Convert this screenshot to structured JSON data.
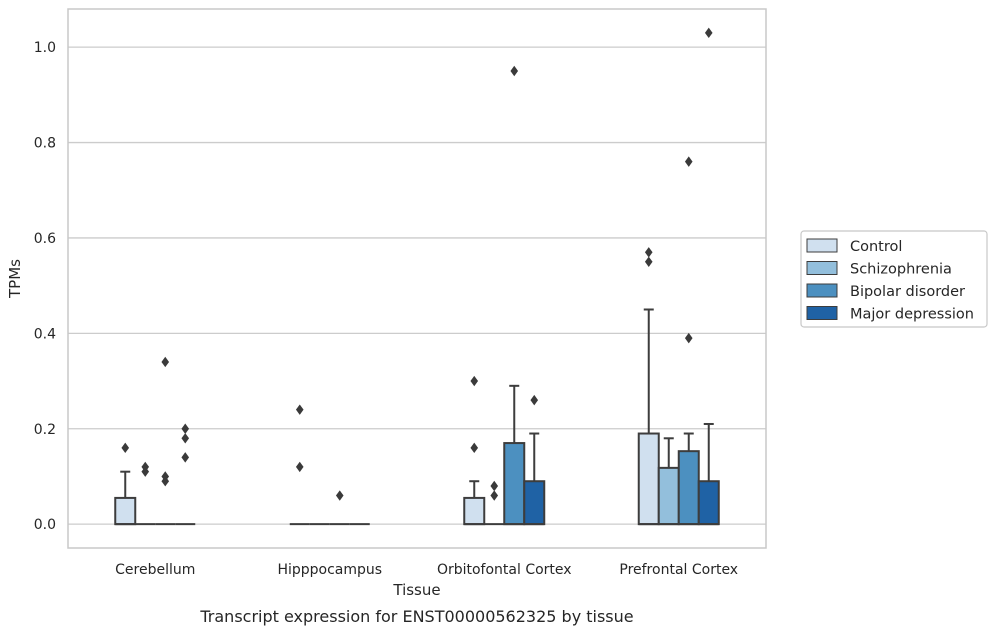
{
  "colors": {
    "Control": "#d0e0ef",
    "Schizophrenia": "#93bfdc",
    "Bipolar disorder": "#4c90c0",
    "Major depression": "#1f62a5",
    "edge": "#3d3d3d",
    "grid": "#cccccc",
    "frame": "#c8c8c8",
    "outlier": "#3a3a3a"
  },
  "caption": "Transcript expression for ENST00000562325 by tissue",
  "chart_data": {
    "type": "bar",
    "subtype": "boxplot",
    "xlabel": "Tissue",
    "ylabel": "TPMs",
    "ylim": [
      -0.05,
      1.08
    ],
    "yticks": [
      0.0,
      0.2,
      0.4,
      0.6,
      0.8,
      1.0
    ],
    "ytick_labels": [
      "0.0",
      "0.2",
      "0.4",
      "0.6",
      "0.8",
      "1.0"
    ],
    "grid": true,
    "legend_position": "right",
    "categories": [
      "Cerebellum",
      "Hipppocampus",
      "Orbitofontal Cortex",
      "Prefrontal Cortex"
    ],
    "series": [
      {
        "name": "Control",
        "boxes": [
          {
            "q1": 0,
            "median": 0,
            "q3": 0.055,
            "whisker_high": 0.11,
            "outliers": [
              0.16
            ]
          },
          {
            "q1": 0,
            "median": 0,
            "q3": 0,
            "whisker_high": 0,
            "outliers": [
              0.12,
              0.24
            ]
          },
          {
            "q1": 0,
            "median": 0,
            "q3": 0.055,
            "whisker_high": 0.09,
            "outliers": [
              0.16,
              0.3
            ]
          },
          {
            "q1": 0,
            "median": 0,
            "q3": 0.19,
            "whisker_high": 0.45,
            "outliers": [
              0.55,
              0.57
            ]
          }
        ]
      },
      {
        "name": "Schizophrenia",
        "boxes": [
          {
            "q1": 0,
            "median": 0,
            "q3": 0,
            "whisker_high": 0,
            "outliers": [
              0.11,
              0.12
            ]
          },
          {
            "q1": 0,
            "median": 0,
            "q3": 0,
            "whisker_high": 0,
            "outliers": []
          },
          {
            "q1": 0,
            "median": 0,
            "q3": 0,
            "whisker_high": 0,
            "outliers": [
              0.06,
              0.08
            ]
          },
          {
            "q1": 0,
            "median": 0,
            "q3": 0.118,
            "whisker_high": 0.18,
            "outliers": []
          }
        ]
      },
      {
        "name": "Bipolar disorder",
        "boxes": [
          {
            "q1": 0,
            "median": 0,
            "q3": 0,
            "whisker_high": 0,
            "outliers": [
              0.09,
              0.1,
              0.34
            ]
          },
          {
            "q1": 0,
            "median": 0,
            "q3": 0,
            "whisker_high": 0,
            "outliers": [
              0.06
            ]
          },
          {
            "q1": 0,
            "median": 0,
            "q3": 0.17,
            "whisker_high": 0.29,
            "outliers": [
              0.95
            ]
          },
          {
            "q1": 0,
            "median": 0,
            "q3": 0.153,
            "whisker_high": 0.19,
            "outliers": [
              0.39,
              0.76
            ]
          }
        ]
      },
      {
        "name": "Major depression",
        "boxes": [
          {
            "q1": 0,
            "median": 0,
            "q3": 0,
            "whisker_high": 0,
            "outliers": [
              0.14,
              0.18,
              0.2
            ]
          },
          {
            "q1": 0,
            "median": 0,
            "q3": 0,
            "whisker_high": 0,
            "outliers": []
          },
          {
            "q1": 0,
            "median": 0,
            "q3": 0.09,
            "whisker_high": 0.19,
            "outliers": [
              0.26
            ]
          },
          {
            "q1": 0,
            "median": 0,
            "q3": 0.09,
            "whisker_high": 0.21,
            "outliers": [
              1.03
            ]
          }
        ]
      }
    ]
  }
}
